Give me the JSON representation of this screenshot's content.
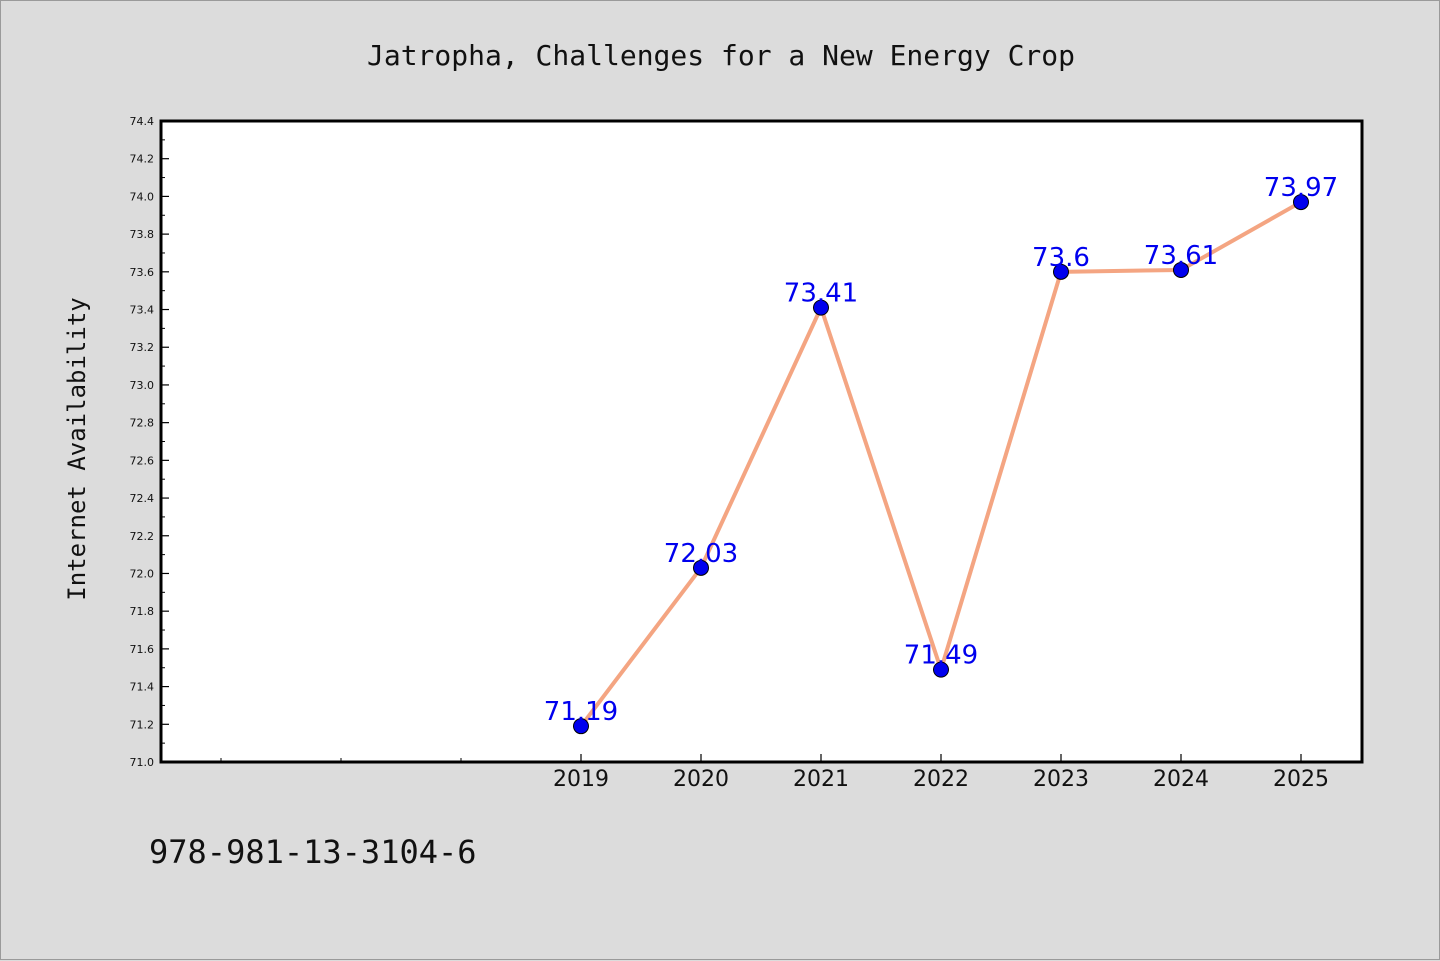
{
  "footer": {
    "isbn": "978-981-13-3104-6"
  },
  "chart_data": {
    "type": "line",
    "title": "Jatropha, Challenges for a New Energy Crop",
    "xlabel": "",
    "ylabel": "Internet Availability",
    "categories": [
      "2019",
      "2020",
      "2021",
      "2022",
      "2023",
      "2024",
      "2025"
    ],
    "series": [
      {
        "values": [
          71.19,
          72.03,
          73.41,
          71.49,
          73.6,
          73.61,
          73.97
        ],
        "labels": [
          "71.19",
          "72.03",
          "73.41",
          "71.49",
          "73.6",
          "73.61",
          "73.97"
        ],
        "line_color": "#f4a582",
        "marker_color": "#0000ee",
        "label_color": "#0000ee"
      }
    ],
    "ylim": [
      71.0,
      74.4
    ],
    "yticks": [
      "71.0",
      "71.2",
      "71.4",
      "71.6",
      "71.8",
      "72.0",
      "72.2",
      "72.4",
      "72.6",
      "72.8",
      "73.0",
      "73.2",
      "73.4",
      "73.6",
      "73.8",
      "74.0",
      "74.2",
      "74.4"
    ],
    "grid": false,
    "legend": "none"
  }
}
